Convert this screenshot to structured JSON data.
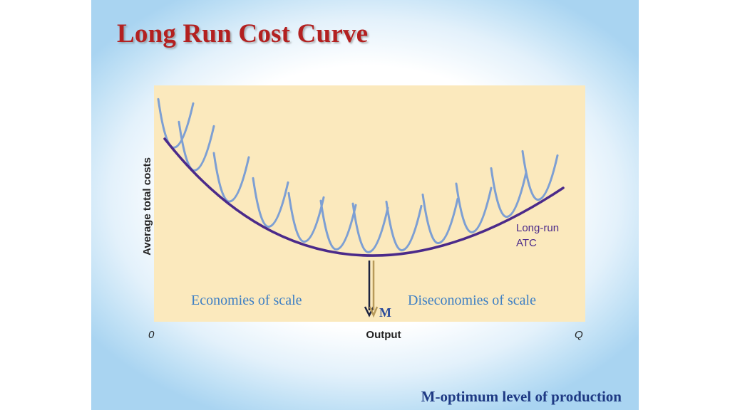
{
  "slide": {
    "title": "Long Run Cost Curve",
    "caption": "M-optimum level of production"
  },
  "diagram": {
    "y_axis_label": "Average total costs",
    "x_axis_label": "Output",
    "origin_label": "0",
    "x_end_label": "Q",
    "curve_label_line1": "Long-run",
    "curve_label_line2": "ATC",
    "left_region_label": "Economies of scale",
    "right_region_label": "Diseconomies of scale",
    "marker_label": "M",
    "colors": {
      "panel": "#fbe9bd",
      "long_run_curve": "#4b2a8a",
      "short_run_curves": "#7d9fd3",
      "region_text": "#3d7fc4",
      "arrow_dark": "#1c2340",
      "arrow_light": "#b89a5a"
    }
  }
}
